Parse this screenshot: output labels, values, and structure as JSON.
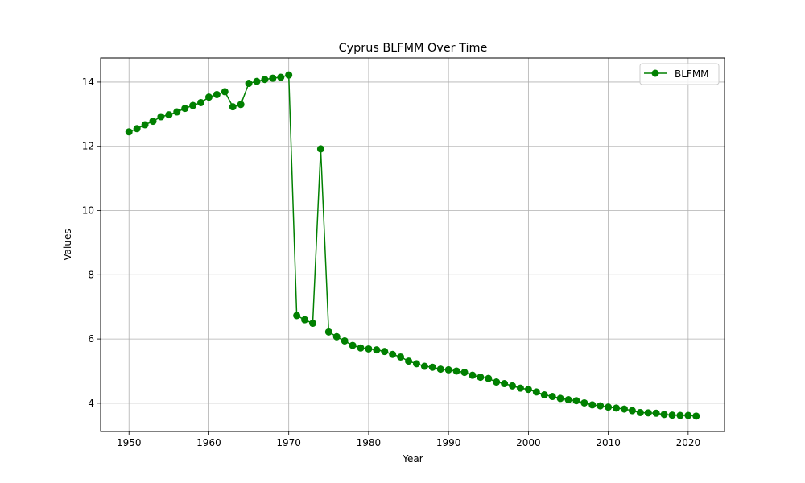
{
  "chart_data": {
    "type": "line",
    "title": "Cyprus BLFMM Over Time",
    "xlabel": "Year",
    "ylabel": "Values",
    "xlim": [
      1946.45,
      2024.55
    ],
    "ylim": [
      3.12,
      14.75
    ],
    "xticks": [
      1950,
      1960,
      1970,
      1980,
      1990,
      2000,
      2010,
      2020
    ],
    "yticks": [
      4,
      6,
      8,
      10,
      12,
      14
    ],
    "grid": true,
    "legend_position": "top-right",
    "series": [
      {
        "name": "BLFMM",
        "color": "#008000",
        "marker": "circle",
        "x": [
          1950,
          1951,
          1952,
          1953,
          1954,
          1955,
          1956,
          1957,
          1958,
          1959,
          1960,
          1961,
          1962,
          1963,
          1964,
          1965,
          1966,
          1967,
          1968,
          1969,
          1970,
          1971,
          1972,
          1973,
          1974,
          1975,
          1976,
          1977,
          1978,
          1979,
          1980,
          1981,
          1982,
          1983,
          1984,
          1985,
          1986,
          1987,
          1988,
          1989,
          1990,
          1991,
          1992,
          1993,
          1994,
          1995,
          1996,
          1997,
          1998,
          1999,
          2000,
          2001,
          2002,
          2003,
          2004,
          2005,
          2006,
          2007,
          2008,
          2009,
          2010,
          2011,
          2012,
          2013,
          2014,
          2015,
          2016,
          2017,
          2018,
          2019,
          2020,
          2021
        ],
        "values": [
          12.45,
          12.55,
          12.67,
          12.78,
          12.92,
          12.98,
          13.07,
          13.18,
          13.27,
          13.36,
          13.53,
          13.61,
          13.7,
          13.23,
          13.3,
          13.96,
          14.02,
          14.08,
          14.12,
          14.15,
          14.22,
          6.73,
          6.6,
          6.49,
          11.92,
          6.22,
          6.07,
          5.94,
          5.8,
          5.72,
          5.69,
          5.66,
          5.61,
          5.52,
          5.44,
          5.31,
          5.23,
          5.15,
          5.12,
          5.06,
          5.04,
          5.0,
          4.96,
          4.87,
          4.81,
          4.77,
          4.66,
          4.61,
          4.54,
          4.47,
          4.43,
          4.35,
          4.26,
          4.21,
          4.15,
          4.11,
          4.08,
          4.01,
          3.95,
          3.92,
          3.88,
          3.85,
          3.82,
          3.77,
          3.71,
          3.7,
          3.69,
          3.65,
          3.63,
          3.62,
          3.62,
          3.6
        ]
      }
    ]
  }
}
